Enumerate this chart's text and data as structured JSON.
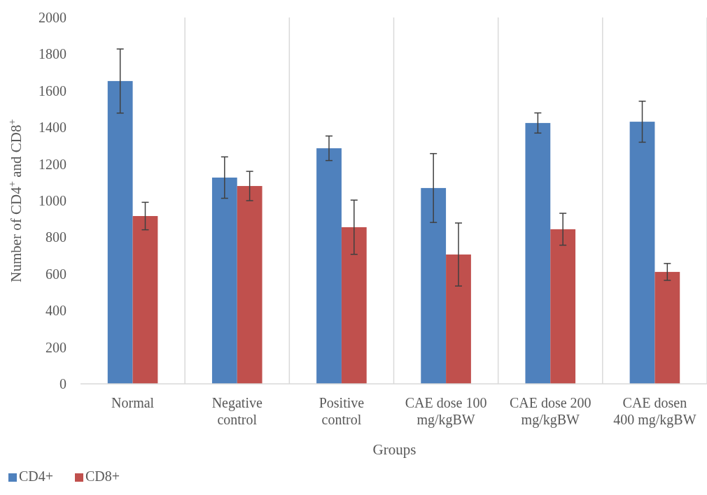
{
  "chart_data": {
    "type": "bar",
    "xlabel": "Groups",
    "ylabel": "Number of CD4$^{+}$ and CD8$^{+}$",
    "categories": [
      "Normal",
      "Negative control",
      "Positive control",
      "CAE dose 100 mg/kgBW",
      "CAE dose 200 mg/kgBW",
      "CAE dosen 400 mg/kgBW"
    ],
    "series": [
      {
        "name": "CD4+",
        "color": "#4f81bd",
        "values": [
          1653,
          1126,
          1286,
          1069,
          1424,
          1431
        ],
        "errors": [
          175,
          113,
          67,
          188,
          55,
          112
        ]
      },
      {
        "name": "CD8+",
        "color": "#c0504d",
        "values": [
          916,
          1080,
          855,
          706,
          844,
          611
        ],
        "errors": [
          75,
          80,
          148,
          172,
          87,
          46
        ]
      }
    ],
    "ylim": [
      0,
      2000
    ],
    "yticks": [
      0,
      200,
      400,
      600,
      800,
      1000,
      1200,
      1400,
      1600,
      1800,
      2000
    ],
    "grid": "x",
    "legend": "bottom left"
  }
}
